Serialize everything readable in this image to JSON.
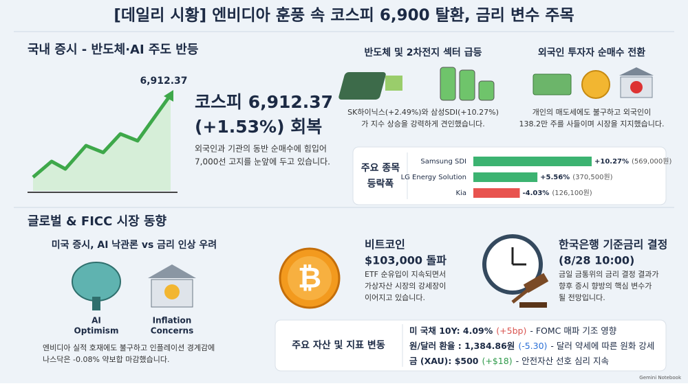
{
  "header": {
    "title": "[데일리 시황] 엔비디아 훈풍 속 코스피 6,900 탈환, 금리 변수 주목"
  },
  "domestic": {
    "heading": "국내 증시 - 반도체·AI 주도 반등",
    "chart_label": "6,912.37",
    "headline": [
      "코스피 6,912.37",
      "(+1.53%) 회복"
    ],
    "body": [
      "외국인과 기관의 동반 순매수에 힘입어",
      "7,000선 고지를 눈앞에 두고 있습니다."
    ]
  },
  "sector": {
    "heading": "반도체 및 2차전지 섹터 급등",
    "body": [
      "SK하이닉스(+2.49%)와 삼성SDI(+10.27%)",
      "가 지수 상승을 강력하게 견인했습니다."
    ]
  },
  "foreign": {
    "heading": "외국인 투자자 순매수 전환",
    "body": [
      "개인의 매도세에도 불구하고 외국인이",
      "138.2만 주를 사들이며 시장을 지지했습니다."
    ]
  },
  "movers": {
    "title": [
      "주요 종목",
      "등락폭"
    ],
    "stocks": [
      {
        "name": "Samsung SDI",
        "value": 10.27,
        "label": "+10.27%",
        "price": "(569,000원)",
        "color": "#3cb371"
      },
      {
        "name": "LG Energy Solution",
        "value": 5.56,
        "label": "+5.56%",
        "price": "(370,500원)",
        "color": "#3cb371"
      },
      {
        "name": "Kia",
        "value": -4.03,
        "label": "-4.03%",
        "price": "(126,100원)",
        "color": "#e8534f"
      }
    ]
  },
  "global": {
    "heading": "글로벌 & FICC 시장 동향",
    "us": {
      "heading": "미국 증시, AI 낙관론 vs 금리 인상 우려",
      "icons": [
        [
          "AI",
          "Optimism"
        ],
        [
          "Inflation",
          "Concerns"
        ]
      ],
      "body": [
        "엔비디아 실적 호재에도 불구하고 인플레이션 경계감에",
        "나스닥은 -0.08% 약보합 마감했습니다."
      ]
    }
  },
  "bitcoin": {
    "heading": [
      "비트코인",
      "$103,000 돌파"
    ],
    "body": [
      "ETF 순유입이 지속되면서",
      "가상자산 시장의 강세장이",
      "이어지고 있습니다."
    ]
  },
  "bok": {
    "heading": [
      "한국은행 기준금리 결정",
      "(8/28 10:00)"
    ],
    "body": [
      "금일 금통위의 금리 결정 결과가",
      "향후 증시 향방의 핵심 변수가",
      "될 전망입니다."
    ]
  },
  "indicators": {
    "title": "주요 자산 및 지표 변동",
    "rows": [
      {
        "label": "미 국채 10Y: 4.09%",
        "change": "(+5bp)",
        "note": "- FOMC 매파 기조 영향",
        "color": "#d9534f"
      },
      {
        "label": "원/달러 환율 : 1,384.86원",
        "change": "(-5.30)",
        "note": "- 달러 약세에 따른 원화 강세",
        "color": "#2a6fd6"
      },
      {
        "label": "금 (XAU): $500",
        "change": "(+$18)",
        "note": "- 안전자산 선호 심리 지속",
        "color": "#2e9a4a"
      }
    ]
  },
  "footer": "Gemini Notebook"
}
